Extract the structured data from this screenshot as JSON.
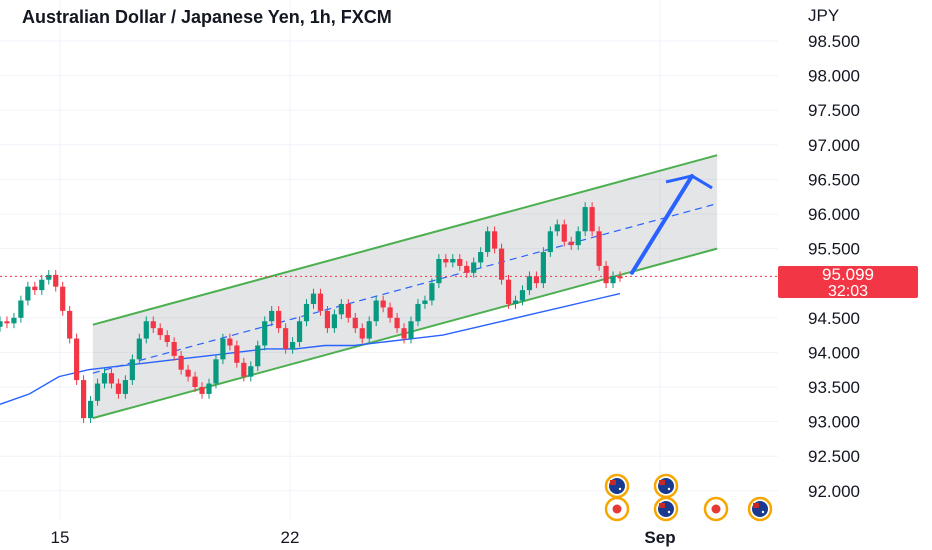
{
  "header": {
    "title": "Australian Dollar / Japanese Yen, 1h, FXCM"
  },
  "chart_data": {
    "type": "line",
    "currency_label": "JPY",
    "y_ticks": [
      "98.500",
      "98.000",
      "97.500",
      "97.000",
      "96.500",
      "96.000",
      "95.500",
      "94.500",
      "94.000",
      "93.500",
      "93.000",
      "92.500",
      "92.000"
    ],
    "x_ticks": [
      "15",
      "22",
      "Sep"
    ],
    "ylim": [
      91.6,
      98.9
    ],
    "grid": true,
    "series": [
      {
        "values": [
          94.45,
          94.42,
          94.5,
          94.75,
          94.95,
          94.9,
          95.05,
          95.12,
          94.95,
          94.6,
          94.2,
          93.6,
          93.05,
          93.3,
          93.55,
          93.7,
          93.55,
          93.4,
          93.6,
          93.9,
          94.2,
          94.45,
          94.35,
          94.25,
          94.15,
          93.95,
          93.75,
          93.65,
          93.5,
          93.4,
          93.55,
          93.9,
          94.2,
          94.1,
          93.85,
          93.65,
          93.8,
          94.1,
          94.45,
          94.6,
          94.35,
          94.05,
          94.15,
          94.45,
          94.7,
          94.85,
          94.6,
          94.35,
          94.55,
          94.7,
          94.5,
          94.35,
          94.2,
          94.45,
          94.75,
          94.65,
          94.5,
          94.35,
          94.2,
          94.45,
          94.7,
          94.75,
          95.0,
          95.35,
          95.3,
          95.35,
          95.25,
          95.15,
          95.3,
          95.45,
          95.75,
          95.5,
          95.05,
          94.7,
          94.75,
          94.9,
          95.1,
          95.0,
          95.45,
          95.75,
          95.85,
          95.6,
          95.55,
          95.75,
          96.1,
          95.75,
          95.25,
          95.0,
          95.1,
          95.09
        ]
      },
      {
        "values": [
          93.25,
          93.4,
          93.65,
          93.75,
          93.8,
          93.85,
          93.9,
          93.95,
          94.0,
          94.05,
          94.05,
          94.1,
          94.1,
          94.15,
          94.2,
          94.25,
          94.35,
          94.45,
          94.55,
          94.65,
          94.75,
          94.85
        ]
      }
    ],
    "channel": {
      "upper": [
        {
          "x": "Aug 16",
          "y": 94.4
        },
        {
          "x": "Sep 4",
          "y": 96.85
        }
      ],
      "lower": [
        {
          "x": "Aug 16",
          "y": 93.05
        },
        {
          "x": "Sep 4",
          "y": 95.5
        }
      ],
      "mid": [
        {
          "x": "Aug 16",
          "y": 93.7
        },
        {
          "x": "Sep 4",
          "y": 96.15
        }
      ]
    },
    "projection": {
      "from": 95.15,
      "to": 96.55
    },
    "last_price": {
      "value": "95.099",
      "countdown": "32:03",
      "color": "#f23645"
    },
    "colors": {
      "up": "#089981",
      "down": "#f23645",
      "channel": "#4caf50",
      "moving_average": "#2962ff",
      "projection_arrow": "#2962ff"
    },
    "event_icons": [
      "australia-flag-icon",
      "australia-flag-icon",
      "japan-flag-icon",
      "australia-flag-icon",
      "japan-flag-icon",
      "australia-flag-icon"
    ]
  }
}
